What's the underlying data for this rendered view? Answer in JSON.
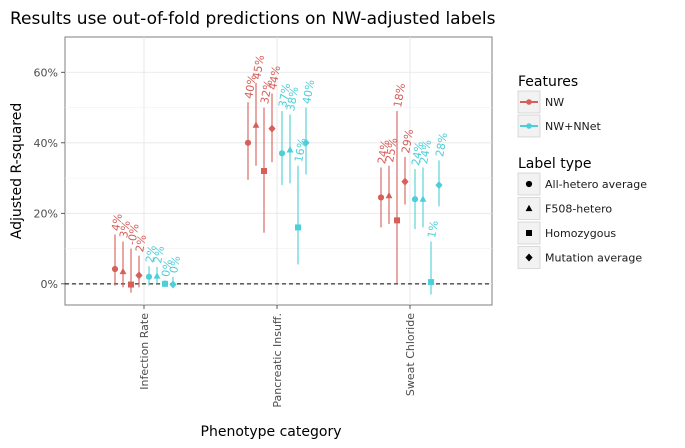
{
  "chart_data": {
    "type": "scatter",
    "subtype": "pointrange",
    "title": "Results use out-of-fold predictions on NW-adjusted labels",
    "xlabel": "Phenotype category",
    "ylabel": "Adjusted R-squared",
    "categories": [
      "Infection Rate",
      "Pancreatic Insuff.",
      "Sweat Chloride"
    ],
    "ylim": [
      -0.06,
      0.7
    ],
    "yticks": [
      0,
      0.2,
      0.4,
      0.6
    ],
    "ytick_labels": [
      "0%",
      "20%",
      "40%",
      "60%"
    ],
    "reference_line": {
      "y": 0,
      "style": "dashed"
    },
    "grid": true,
    "legends": [
      {
        "title": "Features",
        "position": "right",
        "entries": [
          {
            "label": "NW",
            "color": "#d65f5a"
          },
          {
            "label": "NW+NNet",
            "color": "#4ecfd8"
          }
        ]
      },
      {
        "title": "Label type",
        "position": "right",
        "entries": [
          {
            "label": "All-hetero average",
            "shape": "circle"
          },
          {
            "label": "F508-hetero",
            "shape": "triangle"
          },
          {
            "label": "Homozygous",
            "shape": "square"
          },
          {
            "label": "Mutation average",
            "shape": "diamond"
          }
        ]
      }
    ],
    "series": [
      {
        "name": "NW",
        "color": "#d65f5a",
        "points": [
          {
            "category": "Infection Rate",
            "label_type": "All-hetero average",
            "y": 0.042,
            "ymin": -0.005,
            "ymax": 0.14,
            "label": "4%"
          },
          {
            "category": "Infection Rate",
            "label_type": "F508-hetero",
            "y": 0.035,
            "ymin": -0.01,
            "ymax": 0.12,
            "label": "3%"
          },
          {
            "category": "Infection Rate",
            "label_type": "Homozygous",
            "y": -0.002,
            "ymin": -0.025,
            "ymax": 0.1,
            "label": "-0%"
          },
          {
            "category": "Infection Rate",
            "label_type": "Mutation average",
            "y": 0.024,
            "ymin": -0.01,
            "ymax": 0.08,
            "label": "2%"
          },
          {
            "category": "Pancreatic Insuff.",
            "label_type": "All-hetero average",
            "y": 0.4,
            "ymin": 0.295,
            "ymax": 0.515,
            "label": "40%"
          },
          {
            "category": "Pancreatic Insuff.",
            "label_type": "F508-hetero",
            "y": 0.45,
            "ymin": 0.335,
            "ymax": 0.57,
            "label": "45%"
          },
          {
            "category": "Pancreatic Insuff.",
            "label_type": "Homozygous",
            "y": 0.32,
            "ymin": 0.145,
            "ymax": 0.5,
            "label": "32%"
          },
          {
            "category": "Pancreatic Insuff.",
            "label_type": "Mutation average",
            "y": 0.44,
            "ymin": 0.345,
            "ymax": 0.54,
            "label": "44%"
          },
          {
            "category": "Sweat Chloride",
            "label_type": "All-hetero average",
            "y": 0.245,
            "ymin": 0.16,
            "ymax": 0.33,
            "label": "24%"
          },
          {
            "category": "Sweat Chloride",
            "label_type": "F508-hetero",
            "y": 0.25,
            "ymin": 0.17,
            "ymax": 0.335,
            "label": "25%"
          },
          {
            "category": "Sweat Chloride",
            "label_type": "Homozygous",
            "y": 0.18,
            "ymin": 0.0,
            "ymax": 0.49,
            "label": "18%"
          },
          {
            "category": "Sweat Chloride",
            "label_type": "Mutation average",
            "y": 0.29,
            "ymin": 0.225,
            "ymax": 0.36,
            "label": "29%"
          }
        ]
      },
      {
        "name": "NW+NNet",
        "color": "#4ecfd8",
        "points": [
          {
            "category": "Infection Rate",
            "label_type": "All-hetero average",
            "y": 0.02,
            "ymin": -0.005,
            "ymax": 0.05,
            "label": "2%"
          },
          {
            "category": "Infection Rate",
            "label_type": "F508-hetero",
            "y": 0.022,
            "ymin": 0.0,
            "ymax": 0.048,
            "label": "2%"
          },
          {
            "category": "Infection Rate",
            "label_type": "Homozygous",
            "y": 0.0,
            "ymin": -0.008,
            "ymax": 0.01,
            "label": "0%"
          },
          {
            "category": "Infection Rate",
            "label_type": "Mutation average",
            "y": -0.002,
            "ymin": -0.01,
            "ymax": 0.02,
            "label": "0%"
          },
          {
            "category": "Pancreatic Insuff.",
            "label_type": "All-hetero average",
            "y": 0.37,
            "ymin": 0.28,
            "ymax": 0.49,
            "label": "37%"
          },
          {
            "category": "Pancreatic Insuff.",
            "label_type": "F508-hetero",
            "y": 0.38,
            "ymin": 0.285,
            "ymax": 0.48,
            "label": "38%"
          },
          {
            "category": "Pancreatic Insuff.",
            "label_type": "Homozygous",
            "y": 0.16,
            "ymin": 0.055,
            "ymax": 0.335,
            "label": "16%"
          },
          {
            "category": "Pancreatic Insuff.",
            "label_type": "Mutation average",
            "y": 0.4,
            "ymin": 0.31,
            "ymax": 0.5,
            "label": "40%"
          },
          {
            "category": "Sweat Chloride",
            "label_type": "All-hetero average",
            "y": 0.24,
            "ymin": 0.155,
            "ymax": 0.325,
            "label": "24%"
          },
          {
            "category": "Sweat Chloride",
            "label_type": "F508-hetero",
            "y": 0.24,
            "ymin": 0.16,
            "ymax": 0.33,
            "label": "24%"
          },
          {
            "category": "Sweat Chloride",
            "label_type": "Homozygous",
            "y": 0.005,
            "ymin": -0.03,
            "ymax": 0.12,
            "label": "1%"
          },
          {
            "category": "Sweat Chloride",
            "label_type": "Mutation average",
            "y": 0.28,
            "ymin": 0.22,
            "ymax": 0.35,
            "label": "28%"
          }
        ]
      }
    ]
  }
}
